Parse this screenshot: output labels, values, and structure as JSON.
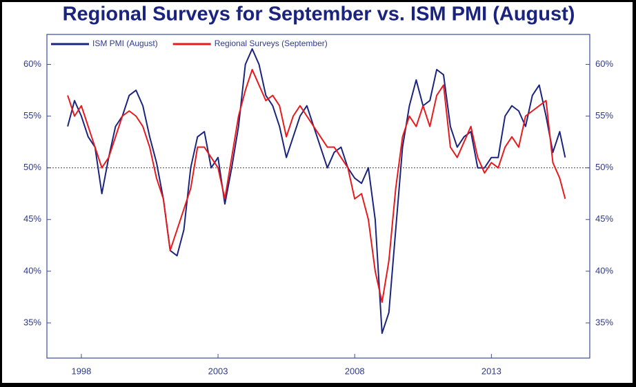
{
  "chart_data": {
    "type": "line",
    "title": "Regional Surveys for September vs. ISM PMI (August)",
    "x": [
      1997.5,
      1997.75,
      1998,
      1998.25,
      1998.5,
      1998.75,
      1999,
      1999.25,
      1999.5,
      1999.75,
      2000,
      2000.25,
      2000.5,
      2000.75,
      2001,
      2001.25,
      2001.5,
      2001.75,
      2002,
      2002.25,
      2002.5,
      2002.75,
      2003,
      2003.25,
      2003.5,
      2003.75,
      2004,
      2004.25,
      2004.5,
      2004.75,
      2005,
      2005.25,
      2005.5,
      2005.75,
      2006,
      2006.25,
      2006.5,
      2006.75,
      2007,
      2007.25,
      2007.5,
      2007.75,
      2008,
      2008.25,
      2008.5,
      2008.75,
      2009,
      2009.25,
      2009.5,
      2009.75,
      2010,
      2010.25,
      2010.5,
      2010.75,
      2011,
      2011.25,
      2011.5,
      2011.75,
      2012,
      2012.25,
      2012.5,
      2012.75,
      2013,
      2013.25,
      2013.5,
      2013.75,
      2014,
      2014.25,
      2014.5,
      2014.75,
      2015,
      2015.25,
      2015.5,
      2015.7
    ],
    "series": [
      {
        "name": "ISM PMI (August)",
        "color": "#1a237e",
        "values": [
          54,
          56.5,
          55,
          53,
          52,
          47.5,
          51,
          54,
          55,
          57,
          57.5,
          56,
          53,
          50.5,
          47,
          42,
          41.5,
          44,
          50,
          53,
          53.5,
          50,
          51,
          46.5,
          50,
          54,
          60,
          61.5,
          60,
          57,
          56,
          54,
          51,
          53,
          55,
          56,
          54,
          52,
          50,
          51.5,
          52,
          50,
          49,
          48.5,
          50,
          45,
          34,
          36,
          44,
          52,
          56,
          58.5,
          56,
          56.5,
          59.5,
          59,
          54,
          52,
          53,
          53.5,
          50,
          50,
          51,
          51,
          55,
          56,
          55.5,
          54,
          57,
          58,
          55,
          51.5,
          53.5,
          51
        ]
      },
      {
        "name": "Regional Surveys (September)",
        "color": "#e8191c",
        "values": [
          57,
          55,
          56,
          54,
          52,
          50,
          51,
          53,
          55,
          55.5,
          55,
          54,
          52,
          49,
          47,
          42,
          44,
          46,
          48,
          52,
          52,
          51,
          50,
          47,
          51,
          55,
          57.5,
          59.5,
          58,
          56.5,
          57,
          56,
          53,
          55,
          56,
          55,
          54,
          53,
          52,
          52,
          51,
          50,
          47,
          47.5,
          45,
          40,
          37,
          41,
          48,
          53,
          55,
          54,
          56,
          54,
          57,
          58,
          52,
          51,
          52.5,
          54,
          51,
          49.5,
          50.5,
          50,
          52,
          53,
          52,
          55,
          55.5,
          56,
          56.5,
          50.5,
          49,
          47
        ]
      }
    ],
    "xlim": [
      1996.74,
      2016.6
    ],
    "xticks": [
      1998,
      2003,
      2008,
      2013
    ],
    "ylim": [
      31.6,
      62.9
    ],
    "yticks": [
      {
        "value": 35,
        "label": "35%"
      },
      {
        "value": 40,
        "label": "40%"
      },
      {
        "value": 45,
        "label": "45%"
      },
      {
        "value": 50,
        "label": "50%"
      },
      {
        "value": 55,
        "label": "55%"
      },
      {
        "value": 60,
        "label": "60%"
      }
    ],
    "reference_line": 50,
    "legend": "upper left"
  }
}
